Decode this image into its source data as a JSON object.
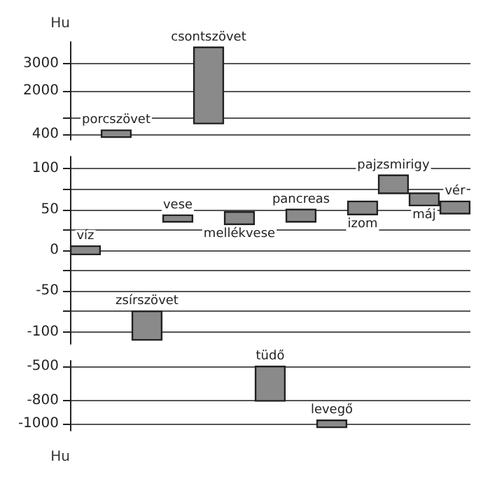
{
  "chart_data": [
    {
      "type": "bar",
      "ylabel": "Hu",
      "categories": [
        null,
        "porcszövet",
        null,
        null,
        "csontszövet",
        null,
        null,
        null,
        null,
        null,
        null,
        null,
        null
      ],
      "values": [
        null,
        250,
        null,
        null,
        2800,
        null,
        null,
        null,
        null,
        null,
        null,
        null,
        null
      ],
      "base": [
        null,
        300,
        null,
        null,
        800,
        null,
        null,
        null,
        null,
        null,
        null,
        null,
        null
      ],
      "color": "#8a8a8a",
      "ylim": [
        200,
        3800
      ],
      "yticks": [
        400,
        {
          "value": 1000,
          "label": null
        },
        2000,
        3000
      ],
      "grid": "y",
      "tick_labels": "y"
    },
    {
      "type": "bar",
      "categories": [
        "víz",
        null,
        "zsírszövet",
        "vese",
        null,
        "mellékvese",
        null,
        "pancreas",
        null,
        "izom",
        "pajzsmirigy",
        "máj",
        "vér"
      ],
      "values": [
        10,
        null,
        35,
        8,
        null,
        15,
        null,
        15,
        null,
        16,
        22,
        15,
        15
      ],
      "base": [
        -5,
        null,
        -110,
        35,
        null,
        32,
        null,
        35,
        null,
        44,
        70,
        55,
        45
      ],
      "color": "#8a8a8a",
      "ylim": [
        -115,
        115
      ],
      "yticks": [
        -100,
        {
          "value": -75,
          "label": null
        },
        -50,
        {
          "value": -25,
          "label": null
        },
        0,
        {
          "value": 25,
          "label": null
        },
        50,
        {
          "value": 75,
          "label": null
        },
        100
      ],
      "grid": "y",
      "tick_labels": "y"
    },
    {
      "type": "bar",
      "ylabel": "Hu",
      "categories": [
        null,
        null,
        null,
        null,
        null,
        null,
        "tüdő",
        null,
        "levegő",
        null,
        null,
        null,
        null
      ],
      "values": [
        null,
        null,
        null,
        null,
        null,
        null,
        300,
        null,
        60,
        null,
        null,
        null,
        null
      ],
      "base": [
        null,
        null,
        null,
        null,
        null,
        null,
        -800,
        null,
        -1030,
        null,
        null,
        null,
        null
      ],
      "color": "#8a8a8a",
      "ylim": [
        -1060,
        -450
      ],
      "yticks": [
        -1000,
        -800,
        -500
      ],
      "grid": "y",
      "tick_labels": "y"
    }
  ]
}
